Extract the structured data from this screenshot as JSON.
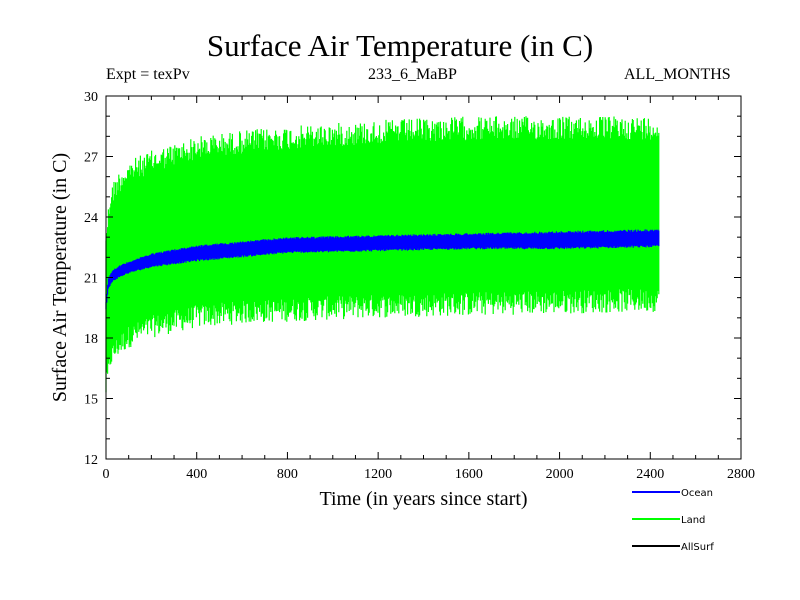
{
  "chart_data": {
    "type": "line",
    "title": "Surface Air Temperature (in C)",
    "subtitle_left": "Expt = texPv",
    "subtitle_center": "233_6_MaBP",
    "subtitle_right": "ALL_MONTHS",
    "xlabel": "Time (in years since start)",
    "ylabel": "Surface Air Temperature (in C)",
    "xlim": [
      0,
      2800
    ],
    "ylim": [
      12,
      30
    ],
    "xticks": [
      0,
      400,
      800,
      1200,
      1600,
      2000,
      2400,
      2800
    ],
    "yticks": [
      12,
      15,
      18,
      21,
      24,
      27,
      30
    ],
    "legend_position": "bottom-right",
    "series": [
      {
        "name": "Land",
        "color": "#00ff00",
        "x": [
          0,
          20,
          50,
          100,
          200,
          400,
          600,
          800,
          1200,
          1600,
          2000,
          2440
        ],
        "upper": [
          23.5,
          25.5,
          26.2,
          26.8,
          27.3,
          28.0,
          28.3,
          28.5,
          28.8,
          29.0,
          29.0,
          29.0
        ],
        "lower": [
          15.0,
          16.5,
          17.0,
          17.5,
          18.0,
          18.5,
          18.7,
          18.8,
          19.0,
          19.1,
          19.2,
          19.3
        ]
      },
      {
        "name": "Ocean",
        "color": "#0000ff",
        "x": [
          0,
          10,
          30,
          60,
          100,
          200,
          400,
          600,
          800,
          1200,
          1600,
          2000,
          2440
        ],
        "upper": [
          19.8,
          21.0,
          21.4,
          21.6,
          21.8,
          22.2,
          22.6,
          22.8,
          23.0,
          23.1,
          23.2,
          23.3,
          23.4
        ],
        "lower": [
          19.4,
          20.4,
          20.8,
          21.0,
          21.2,
          21.5,
          21.8,
          22.0,
          22.2,
          22.3,
          22.4,
          22.4,
          22.5
        ]
      },
      {
        "name": "AllSurf",
        "color": "#000000",
        "x": [],
        "upper": [],
        "lower": []
      }
    ]
  }
}
